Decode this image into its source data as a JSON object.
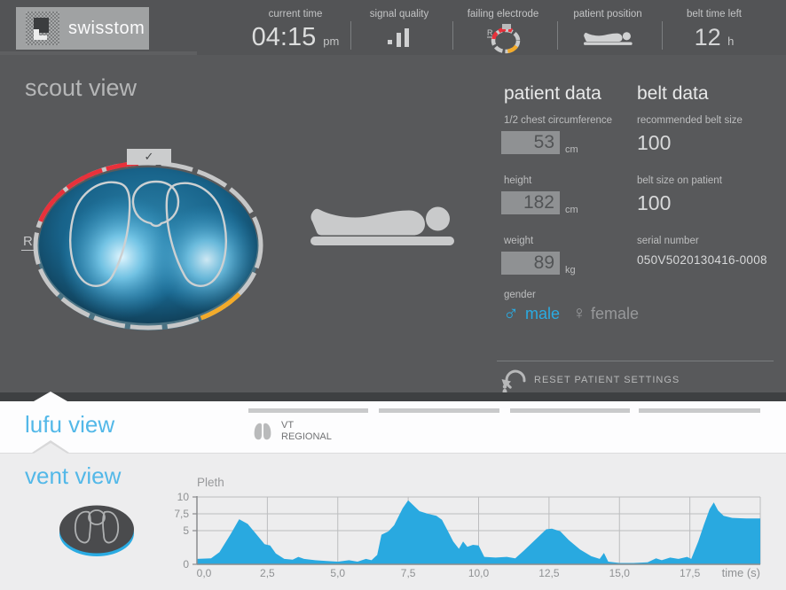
{
  "header": {
    "logo_text": "swisstom",
    "current_time": {
      "label": "current time",
      "value": "04:15",
      "unit": "pm"
    },
    "signal_quality": {
      "label": "signal quality"
    },
    "failing_electrode": {
      "label": "failing electrode",
      "r_marker": "R"
    },
    "patient_position": {
      "label": "patient position"
    },
    "belt_time": {
      "label": "belt time left",
      "value": "12",
      "unit": "h"
    }
  },
  "scout": {
    "title": "scout view",
    "r_label": "R",
    "check_icon": "✓"
  },
  "patient_data": {
    "title": "patient data",
    "fields": [
      {
        "label": "1/2 chest circumference",
        "value": "53",
        "unit": "cm"
      },
      {
        "label": "height",
        "value": "182",
        "unit": "cm"
      },
      {
        "label": "weight",
        "value": "89",
        "unit": "kg"
      }
    ],
    "gender_label": "gender",
    "male_symbol": "♂",
    "male_label": "male",
    "female_symbol": "♀",
    "female_label": "female",
    "selected_gender": "male",
    "reset_label": "RESET PATIENT SETTINGS"
  },
  "belt_data": {
    "title": "belt data",
    "fields": [
      {
        "label": "recommended belt size",
        "value": "100"
      },
      {
        "label": "belt size on patient",
        "value": "100"
      },
      {
        "label": "serial number",
        "value": "050V5020130416-0008"
      }
    ]
  },
  "views": {
    "lufu_label": "lufu view",
    "vent_label": "vent view",
    "vt_line1": "VT",
    "vt_line2": "REGIONAL"
  },
  "colors": {
    "accent_blue": "#2aabe2",
    "chart_fill": "#29a9e0",
    "alarm_red": "#e8313b",
    "warn_yellow": "#f3ab2a",
    "panel_dark": "#58595b"
  },
  "chart_data": {
    "type": "area",
    "title": "Pleth",
    "xlabel": "time (s)",
    "ylabel": "",
    "xlim": [
      0,
      20
    ],
    "ylim": [
      0,
      10
    ],
    "x_ticks": [
      {
        "t": 0,
        "label": "0,0"
      },
      {
        "t": 2.5,
        "label": "2,5"
      },
      {
        "t": 5,
        "label": "5,0"
      },
      {
        "t": 7.5,
        "label": "7,5"
      },
      {
        "t": 10,
        "label": "10,0"
      },
      {
        "t": 12.5,
        "label": "12,5"
      },
      {
        "t": 15,
        "label": "15,0"
      },
      {
        "t": 17.5,
        "label": "17,5"
      }
    ],
    "y_ticks": [
      {
        "v": 0,
        "label": "0"
      },
      {
        "v": 5,
        "label": "5"
      },
      {
        "v": 7.5,
        "label": "7,5"
      },
      {
        "v": 10,
        "label": "10"
      }
    ],
    "grid": true,
    "fill_color": "#29a9e0",
    "points": [
      [
        0,
        0.8
      ],
      [
        0.5,
        0.9
      ],
      [
        0.8,
        1.8
      ],
      [
        1.2,
        4.5
      ],
      [
        1.5,
        6.7
      ],
      [
        1.8,
        6.0
      ],
      [
        2.1,
        4.5
      ],
      [
        2.4,
        3.0
      ],
      [
        2.6,
        2.8
      ],
      [
        2.8,
        1.6
      ],
      [
        3.1,
        0.8
      ],
      [
        3.4,
        0.7
      ],
      [
        3.6,
        1.1
      ],
      [
        3.8,
        0.8
      ],
      [
        4.2,
        0.6
      ],
      [
        4.6,
        0.5
      ],
      [
        5.0,
        0.4
      ],
      [
        5.4,
        0.6
      ],
      [
        5.7,
        0.4
      ],
      [
        6.0,
        0.8
      ],
      [
        6.2,
        0.6
      ],
      [
        6.4,
        1.4
      ],
      [
        6.55,
        4.4
      ],
      [
        6.8,
        4.9
      ],
      [
        7.0,
        5.8
      ],
      [
        7.3,
        8.3
      ],
      [
        7.5,
        9.5
      ],
      [
        7.65,
        8.9
      ],
      [
        7.9,
        7.9
      ],
      [
        8.2,
        7.5
      ],
      [
        8.5,
        7.2
      ],
      [
        8.7,
        6.6
      ],
      [
        8.9,
        5.0
      ],
      [
        9.1,
        3.4
      ],
      [
        9.3,
        2.3
      ],
      [
        9.45,
        3.4
      ],
      [
        9.6,
        2.6
      ],
      [
        9.8,
        2.9
      ],
      [
        10.0,
        2.8
      ],
      [
        10.2,
        1.1
      ],
      [
        10.6,
        1.0
      ],
      [
        11.0,
        1.1
      ],
      [
        11.3,
        0.9
      ],
      [
        11.6,
        2.0
      ],
      [
        12.0,
        3.6
      ],
      [
        12.4,
        5.2
      ],
      [
        12.6,
        5.3
      ],
      [
        12.9,
        4.9
      ],
      [
        13.2,
        3.6
      ],
      [
        13.6,
        2.2
      ],
      [
        14.0,
        1.2
      ],
      [
        14.3,
        0.8
      ],
      [
        14.45,
        1.7
      ],
      [
        14.6,
        0.4
      ],
      [
        15.0,
        0.2
      ],
      [
        15.5,
        0.2
      ],
      [
        16.0,
        0.3
      ],
      [
        16.3,
        0.9
      ],
      [
        16.5,
        0.6
      ],
      [
        16.8,
        1.0
      ],
      [
        17.1,
        0.8
      ],
      [
        17.4,
        1.1
      ],
      [
        17.55,
        0.8
      ],
      [
        17.8,
        3.4
      ],
      [
        18.0,
        5.9
      ],
      [
        18.2,
        8.2
      ],
      [
        18.35,
        9.2
      ],
      [
        18.5,
        8.0
      ],
      [
        18.7,
        7.2
      ],
      [
        19.0,
        6.9
      ],
      [
        19.5,
        6.8
      ],
      [
        20.0,
        6.8
      ]
    ]
  }
}
